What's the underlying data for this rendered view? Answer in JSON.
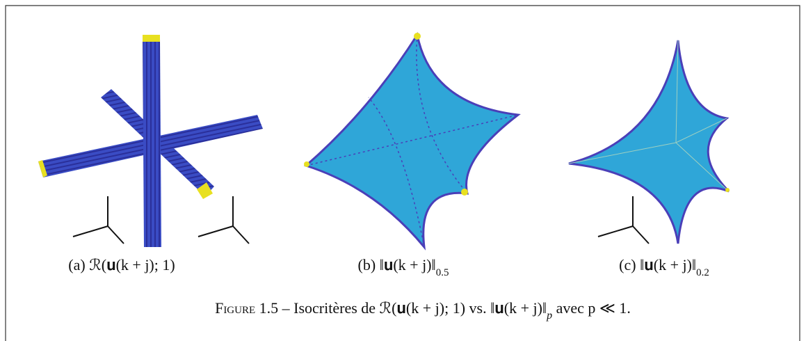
{
  "subfigures": [
    {
      "label": "(a)",
      "formula": "ℛ(𝐮(k + j); 1)"
    },
    {
      "label": "(b)",
      "formula": "‖𝐮(k + j)‖",
      "subscript": "0.5"
    },
    {
      "label": "(c)",
      "formula": "‖𝐮(k + j)‖",
      "subscript": "0.2"
    }
  ],
  "caption": {
    "figure_label": "Figure 1.5",
    "text": "– Isocritères de ℛ(𝐮(k + j); 1) vs. ‖𝐮(k + j)‖",
    "subscript": "p",
    "rest": " avec p ≪ 1."
  }
}
